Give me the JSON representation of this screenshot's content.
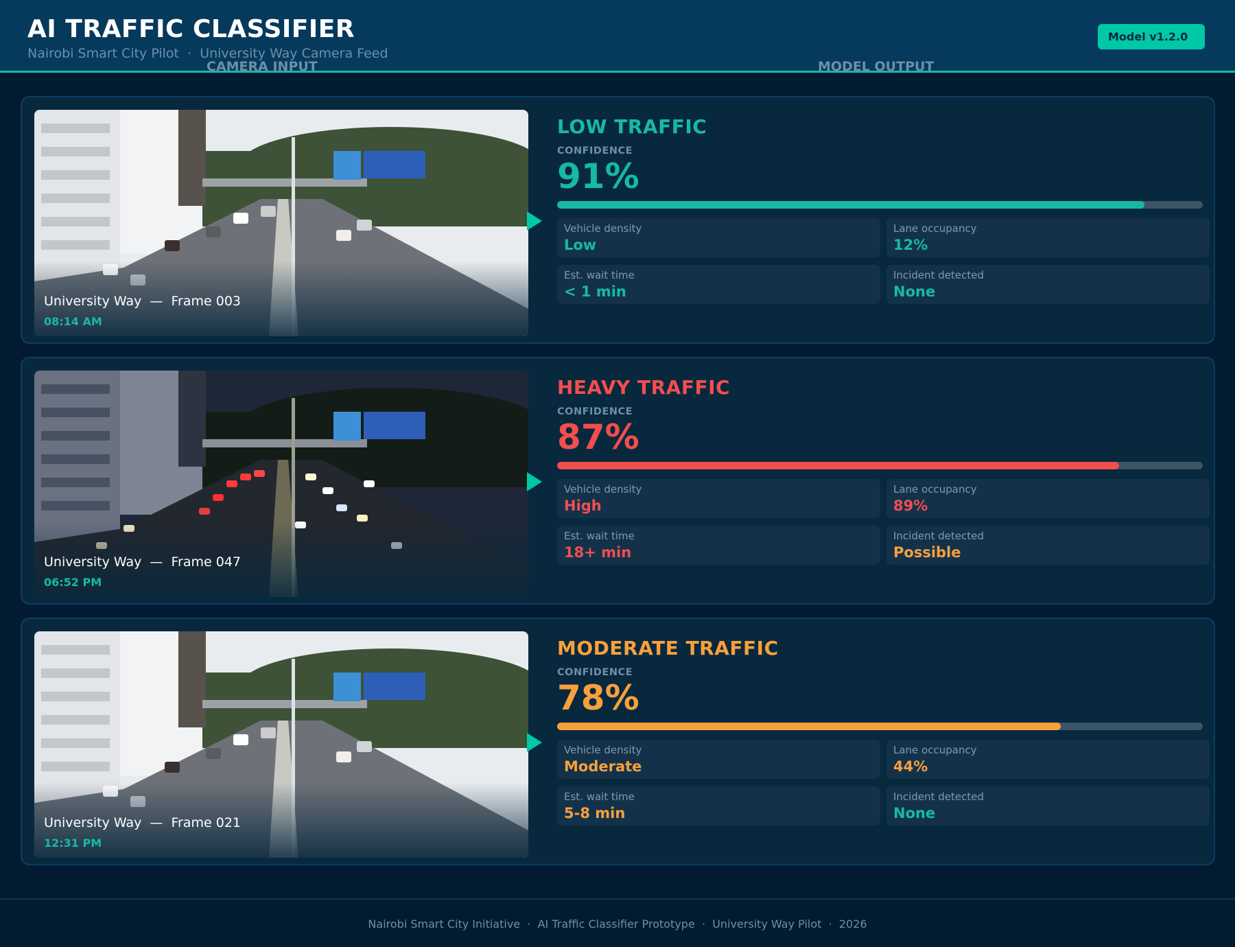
{
  "header": {
    "title": "AI TRAFFIC CLASSIFIER",
    "subtitle": "Nairobi Smart City Pilot  ·  University Way Camera Feed",
    "camera_column_label": "CAMERA INPUT",
    "model_column_label": "MODEL OUTPUT",
    "model_badge": "Model v1.2.0"
  },
  "colors": {
    "accent": "#00c8a7",
    "low": "#17b9a6",
    "heavy": "#f24e4e",
    "moderate": "#f8a03c",
    "background": "#021b31",
    "card": "#08283e",
    "header": "#053a5d"
  },
  "cards": [
    {
      "camera": {
        "caption": "University Way  —  Frame 003",
        "time": "08:14 AM",
        "scene": "day-light-traffic"
      },
      "output": {
        "label": "LOW TRAFFIC",
        "color": "#17b9a6",
        "confidence_label": "CONFIDENCE",
        "confidence": "91%",
        "confidence_value": 91,
        "stats": [
          {
            "label": "Vehicle density",
            "value": "Low",
            "color": "#17b9a6"
          },
          {
            "label": "Lane occupancy",
            "value": "12%",
            "color": "#17b9a6"
          },
          {
            "label": "Est. wait time",
            "value": "< 1 min",
            "color": "#17b9a6"
          },
          {
            "label": "Incident detected",
            "value": "None",
            "color": "#17b9a6"
          }
        ]
      }
    },
    {
      "camera": {
        "caption": "University Way  —  Frame 047",
        "time": "06:52 PM",
        "scene": "dusk-heavy-traffic"
      },
      "output": {
        "label": "HEAVY TRAFFIC",
        "color": "#f24e4e",
        "confidence_label": "CONFIDENCE",
        "confidence": "87%",
        "confidence_value": 87,
        "stats": [
          {
            "label": "Vehicle density",
            "value": "High",
            "color": "#f24e4e"
          },
          {
            "label": "Lane occupancy",
            "value": "89%",
            "color": "#f24e4e"
          },
          {
            "label": "Est. wait time",
            "value": "18+ min",
            "color": "#f24e4e"
          },
          {
            "label": "Incident detected",
            "value": "Possible",
            "color": "#f8a03c"
          }
        ]
      }
    },
    {
      "camera": {
        "caption": "University Way  —  Frame 021",
        "time": "12:31 PM",
        "scene": "day-moderate-traffic"
      },
      "output": {
        "label": "MODERATE TRAFFIC",
        "color": "#f8a03c",
        "confidence_label": "CONFIDENCE",
        "confidence": "78%",
        "confidence_value": 78,
        "stats": [
          {
            "label": "Vehicle density",
            "value": "Moderate",
            "color": "#f8a03c"
          },
          {
            "label": "Lane occupancy",
            "value": "44%",
            "color": "#f8a03c"
          },
          {
            "label": "Est. wait time",
            "value": "5-8 min",
            "color": "#f8a03c"
          },
          {
            "label": "Incident detected",
            "value": "None",
            "color": "#17b9a6"
          }
        ]
      }
    }
  ],
  "footer": {
    "text": "Nairobi Smart City Initiative  ·  AI Traffic Classifier Prototype  ·  University Way Pilot  ·  2026"
  }
}
